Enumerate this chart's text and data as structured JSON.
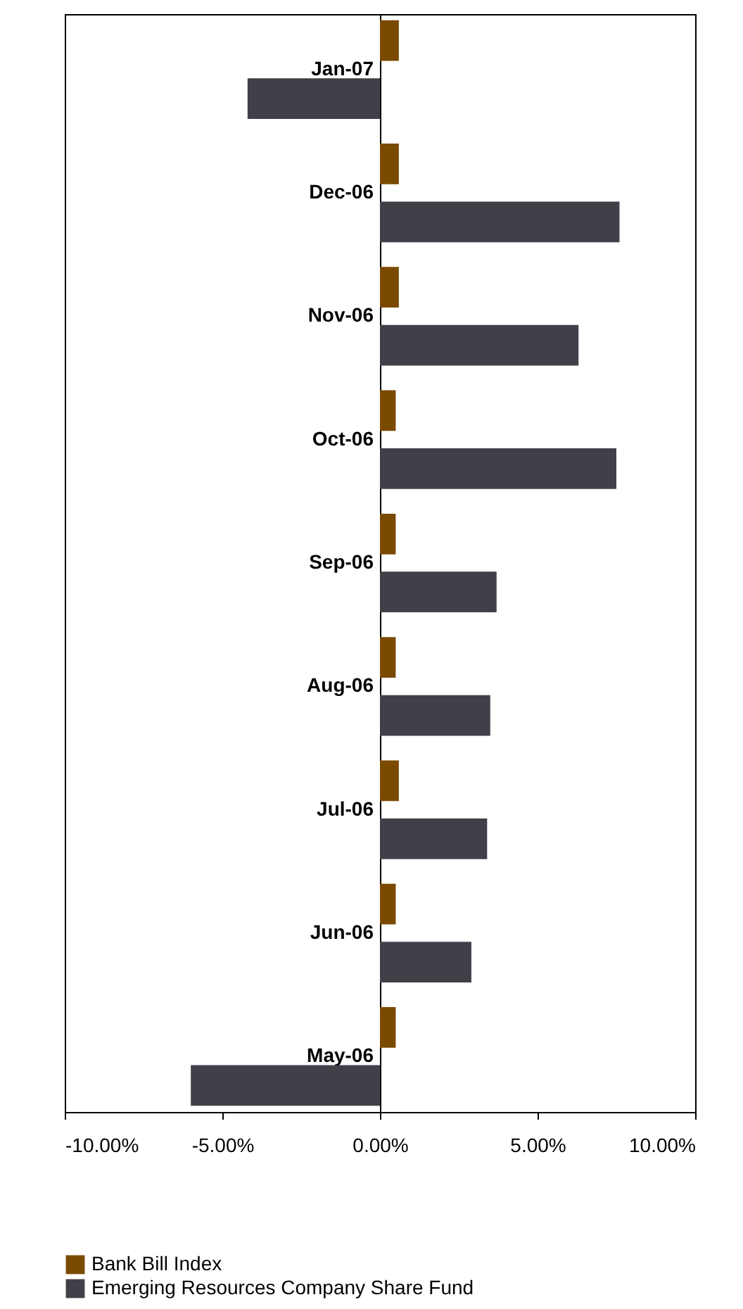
{
  "chart_data": {
    "type": "bar",
    "orientation": "horizontal",
    "categories": [
      "Jan-07",
      "Dec-06",
      "Nov-06",
      "Oct-06",
      "Sep-06",
      "Aug-06",
      "Jul-06",
      "Jun-06",
      "May-06"
    ],
    "series": [
      {
        "name": "Bank Bill Index",
        "color": "#7a4a00",
        "values": [
          0.6,
          0.6,
          0.6,
          0.5,
          0.5,
          0.5,
          0.6,
          0.5,
          0.5
        ]
      },
      {
        "name": "Emerging Resources Company Share Fund",
        "color": "#404048",
        "values": [
          -4.2,
          7.6,
          6.3,
          7.5,
          3.7,
          3.5,
          3.4,
          2.9,
          -6.0
        ]
      }
    ],
    "xlim": [
      -10,
      10
    ],
    "xticks": [
      {
        "value": -10,
        "label": "-10.00%"
      },
      {
        "value": -5,
        "label": "-5.00%"
      },
      {
        "value": 0,
        "label": "0.00%"
      },
      {
        "value": 5,
        "label": "5.00%"
      },
      {
        "value": 10,
        "label": "10.00%"
      }
    ],
    "legend": "bottom"
  }
}
